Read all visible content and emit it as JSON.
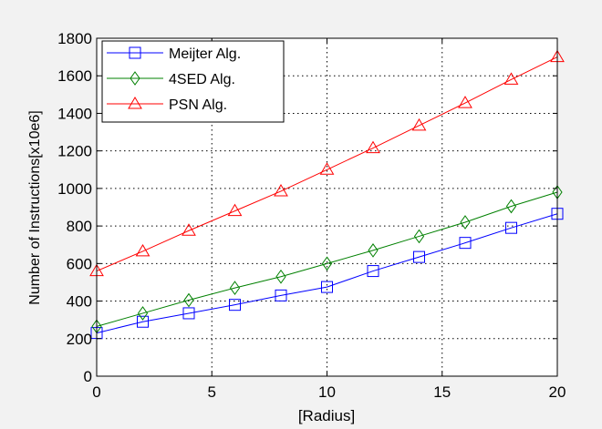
{
  "chart_data": {
    "type": "line",
    "xlabel": "[Radius]",
    "ylabel": "Number of Instructions[x10e6]",
    "xlim": [
      0,
      20
    ],
    "ylim": [
      0,
      1800
    ],
    "xticks": [
      0,
      5,
      10,
      15,
      20
    ],
    "yticks": [
      0,
      200,
      400,
      600,
      800,
      1000,
      1200,
      1400,
      1600,
      1800
    ],
    "grid": true,
    "legend_position": "top-left",
    "x": [
      0,
      2,
      4,
      6,
      8,
      10,
      12,
      14,
      16,
      18,
      20
    ],
    "series": [
      {
        "name": "Meijter Alg.",
        "color": "#0000ff",
        "marker": "square",
        "values": [
          230,
          290,
          335,
          380,
          430,
          475,
          560,
          635,
          710,
          790,
          865
        ]
      },
      {
        "name": "4SED Alg.",
        "color": "#008000",
        "marker": "diamond",
        "values": [
          265,
          335,
          405,
          470,
          530,
          600,
          670,
          745,
          820,
          905,
          980
        ]
      },
      {
        "name": "PSN Alg.",
        "color": "#ff0000",
        "marker": "triangle",
        "values": [
          560,
          665,
          775,
          880,
          985,
          1100,
          1215,
          1335,
          1455,
          1580,
          1700
        ]
      }
    ]
  }
}
